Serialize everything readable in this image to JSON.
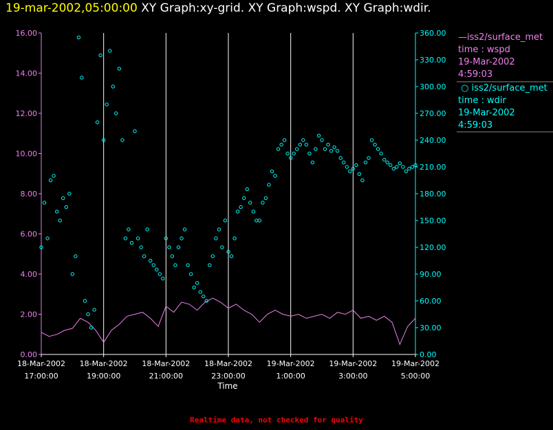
{
  "header": {
    "timestamp": "19-mar-2002,05:00:00",
    "graphs": "XY Graph:xy-grid.  XY Graph:wspd.  XY Graph:wdir."
  },
  "legend": [
    {
      "symbol": "line",
      "name": "iss2/surface_met",
      "var": "time : wspd",
      "date": "19-Mar-2002",
      "time": "4:59:03",
      "color": "#ee82ee"
    },
    {
      "symbol": "circle",
      "name": "iss2/surface_met",
      "var": "time : wdir",
      "date": "19-Mar-2002",
      "time": "4:59:03",
      "color": "#00ffff"
    }
  ],
  "footer": "Realtime data, not checked for quality",
  "chart_data": {
    "type": "line+scatter",
    "xlabel": "Time",
    "x_range_hours": [
      0,
      12
    ],
    "x_ticks": [
      {
        "h": 0,
        "date": "18-Mar-2002",
        "time": "17:00:00"
      },
      {
        "h": 2,
        "date": "18-Mar-2002",
        "time": "19:00:00"
      },
      {
        "h": 4,
        "date": "18-Mar-2002",
        "time": "21:00:00"
      },
      {
        "h": 6,
        "date": "18-Mar-2002",
        "time": "23:00:00"
      },
      {
        "h": 8,
        "date": "19-Mar-2002",
        "time": "1:00:00"
      },
      {
        "h": 10,
        "date": "19-Mar-2002",
        "time": "3:00:00"
      },
      {
        "h": 12,
        "date": "19-Mar-2002",
        "time": "5:00:00"
      }
    ],
    "left_axis": {
      "var": "wspd",
      "ylim": [
        0,
        16
      ],
      "ticks": [
        "0.00",
        "2.00",
        "4.00",
        "6.00",
        "8.00",
        "10.00",
        "12.00",
        "14.00",
        "16.00"
      ],
      "color": "#ee82ee"
    },
    "right_axis": {
      "var": "wdir",
      "ylim": [
        0,
        360
      ],
      "ticks": [
        "0.00",
        "30.00",
        "60.00",
        "90.00",
        "120.00",
        "150.00",
        "180.00",
        "210.00",
        "240.00",
        "270.00",
        "300.00",
        "330.00",
        "360.00"
      ],
      "color": "#00ffff"
    },
    "series": [
      {
        "name": "wspd",
        "axis": "left",
        "style": "line",
        "color": "#ee82ee",
        "x": [
          0,
          0.25,
          0.5,
          0.75,
          1,
          1.25,
          1.5,
          1.75,
          2,
          2.25,
          2.5,
          2.75,
          3,
          3.25,
          3.5,
          3.75,
          4,
          4.25,
          4.5,
          4.75,
          5,
          5.25,
          5.5,
          5.75,
          6,
          6.25,
          6.5,
          6.75,
          7,
          7.25,
          7.5,
          7.75,
          8,
          8.25,
          8.5,
          8.75,
          9,
          9.25,
          9.5,
          9.75,
          10,
          10.25,
          10.5,
          10.75,
          11,
          11.25,
          11.5,
          11.75,
          12
        ],
        "values": [
          1.1,
          0.9,
          1.0,
          1.2,
          1.3,
          1.8,
          1.6,
          1.2,
          0.6,
          1.2,
          1.5,
          1.9,
          2.0,
          2.1,
          1.8,
          1.4,
          2.4,
          2.1,
          2.6,
          2.5,
          2.2,
          2.6,
          2.8,
          2.6,
          2.3,
          2.5,
          2.2,
          2.0,
          1.6,
          2.0,
          2.2,
          2.0,
          1.9,
          2.0,
          1.8,
          1.9,
          2.0,
          1.8,
          2.1,
          2.0,
          2.2,
          1.8,
          1.9,
          1.7,
          1.9,
          1.6,
          0.5,
          1.4,
          1.8
        ]
      },
      {
        "name": "wdir",
        "axis": "right",
        "style": "circle",
        "color": "#00ffff",
        "x": [
          0,
          0.1,
          0.2,
          0.3,
          0.4,
          0.5,
          0.6,
          0.7,
          0.8,
          0.9,
          1.0,
          1.1,
          1.2,
          1.3,
          1.4,
          1.5,
          1.6,
          1.7,
          1.8,
          1.9,
          2.0,
          2.1,
          2.2,
          2.3,
          2.4,
          2.5,
          2.6,
          2.7,
          2.8,
          2.9,
          3.0,
          3.1,
          3.2,
          3.3,
          3.4,
          3.5,
          3.6,
          3.7,
          3.8,
          3.9,
          4.0,
          4.1,
          4.2,
          4.3,
          4.4,
          4.5,
          4.6,
          4.7,
          4.8,
          4.9,
          5.0,
          5.1,
          5.2,
          5.3,
          5.4,
          5.5,
          5.6,
          5.7,
          5.8,
          5.9,
          6.0,
          6.1,
          6.2,
          6.3,
          6.4,
          6.5,
          6.6,
          6.7,
          6.8,
          6.9,
          7.0,
          7.1,
          7.2,
          7.3,
          7.4,
          7.5,
          7.6,
          7.7,
          7.8,
          7.9,
          8.0,
          8.1,
          8.2,
          8.3,
          8.4,
          8.5,
          8.6,
          8.7,
          8.8,
          8.9,
          9.0,
          9.1,
          9.2,
          9.3,
          9.4,
          9.5,
          9.6,
          9.7,
          9.8,
          9.9,
          10.0,
          10.1,
          10.2,
          10.3,
          10.4,
          10.5,
          10.6,
          10.7,
          10.8,
          10.9,
          11.0,
          11.1,
          11.2,
          11.3,
          11.4,
          11.5,
          11.6,
          11.7,
          11.8,
          11.9,
          12.0
        ],
        "values": [
          120,
          170,
          130,
          195,
          200,
          160,
          150,
          175,
          165,
          180,
          90,
          110,
          355,
          310,
          60,
          45,
          30,
          50,
          260,
          335,
          240,
          280,
          340,
          300,
          270,
          320,
          240,
          130,
          140,
          125,
          250,
          130,
          120,
          110,
          140,
          105,
          100,
          95,
          90,
          85,
          130,
          120,
          110,
          100,
          120,
          130,
          140,
          100,
          90,
          75,
          80,
          70,
          65,
          60,
          100,
          110,
          130,
          140,
          120,
          150,
          115,
          110,
          130,
          160,
          165,
          175,
          185,
          170,
          160,
          150,
          150,
          170,
          175,
          190,
          205,
          200,
          230,
          235,
          240,
          225,
          220,
          225,
          230,
          235,
          240,
          235,
          225,
          215,
          230,
          245,
          240,
          230,
          235,
          228,
          232,
          228,
          220,
          215,
          210,
          205,
          208,
          212,
          202,
          195,
          215,
          220,
          240,
          235,
          230,
          225,
          218,
          215,
          212,
          208,
          210,
          214,
          210,
          205,
          208,
          210,
          212
        ]
      }
    ]
  }
}
